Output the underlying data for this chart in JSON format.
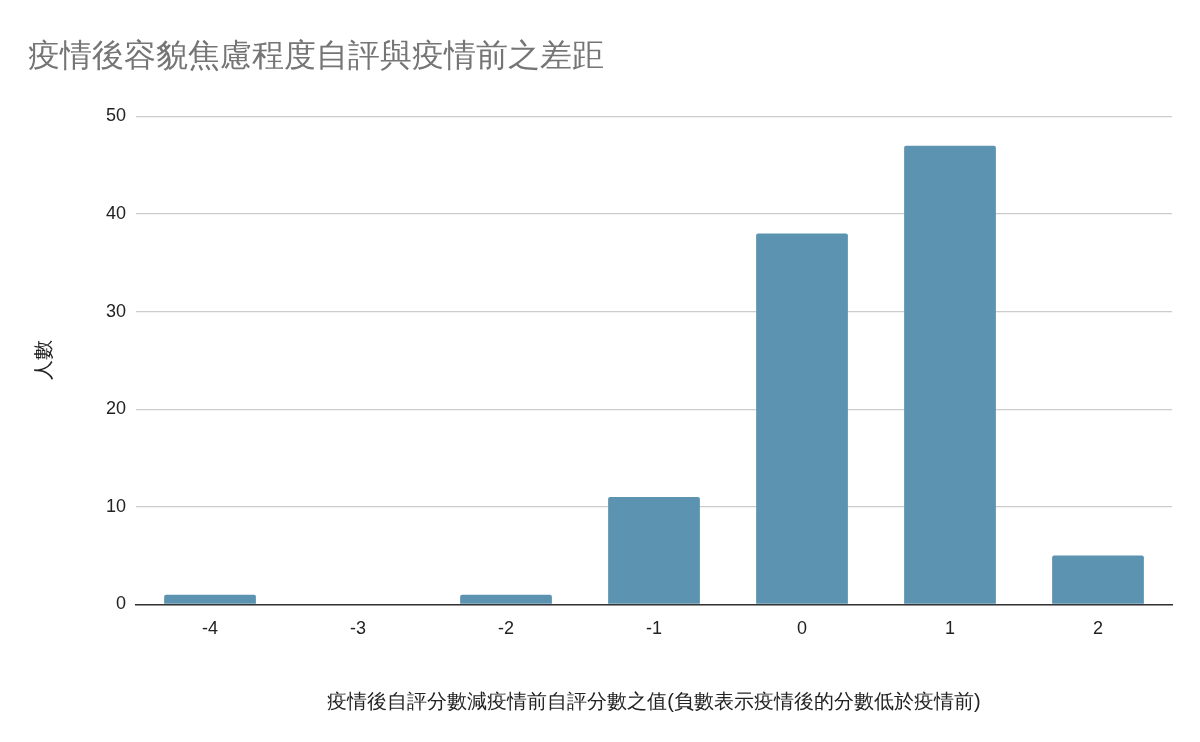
{
  "chart_data": {
    "type": "bar",
    "title": "疫情後容貌焦慮程度自評與疫情前之差距",
    "xlabel": "疫情後自評分數減疫情前自評分數之值(負數表示疫情後的分數低於疫情前)",
    "ylabel": "人數",
    "categories": [
      "-4",
      "-3",
      "-2",
      "-1",
      "0",
      "1",
      "2"
    ],
    "values": [
      1,
      0,
      1,
      11,
      38,
      47,
      5
    ],
    "color": "#5b93b0",
    "ylim": [
      0,
      50
    ],
    "yticks": [
      0,
      10,
      20,
      30,
      40,
      50
    ],
    "grid": "y",
    "legend": false
  }
}
